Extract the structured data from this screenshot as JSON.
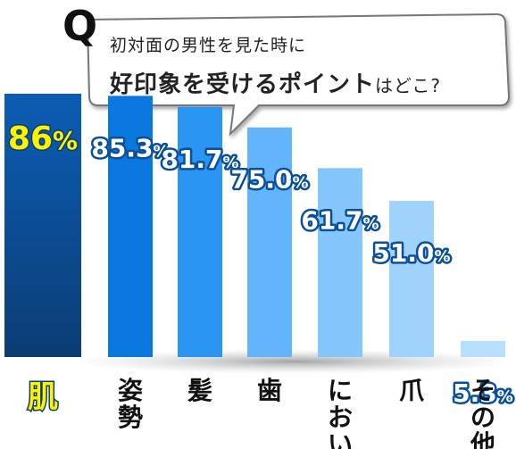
{
  "question": {
    "mark": "Q",
    "line1": "初対面の男性を見た時に",
    "line2_bold": "好印象を受けるポイント",
    "line2_rest": "はどこ?"
  },
  "colors": {
    "highlight": "#fff200",
    "label_outline": "#0a4f9a",
    "bar_shades": [
      "#0e4a8f",
      "#0b78e0",
      "#2b95f4",
      "#62b5fa",
      "#85c6fb",
      "#9fd3fc",
      "#b8dffc"
    ]
  },
  "chart_data": {
    "type": "bar",
    "categories": [
      "肌",
      "姿勢",
      "髪",
      "歯",
      "におい",
      "爪",
      "その他"
    ],
    "values": [
      86,
      85.3,
      81.7,
      75.0,
      61.7,
      51.0,
      5.3
    ],
    "value_labels": [
      "86%",
      "85.3%",
      "81.7%",
      "75.0%",
      "61.7%",
      "51.0%",
      "5.3%"
    ],
    "unit": "%",
    "ylim": [
      0,
      100
    ],
    "title": "",
    "xlabel": "",
    "ylabel": "",
    "grid": false,
    "legend": "none"
  }
}
